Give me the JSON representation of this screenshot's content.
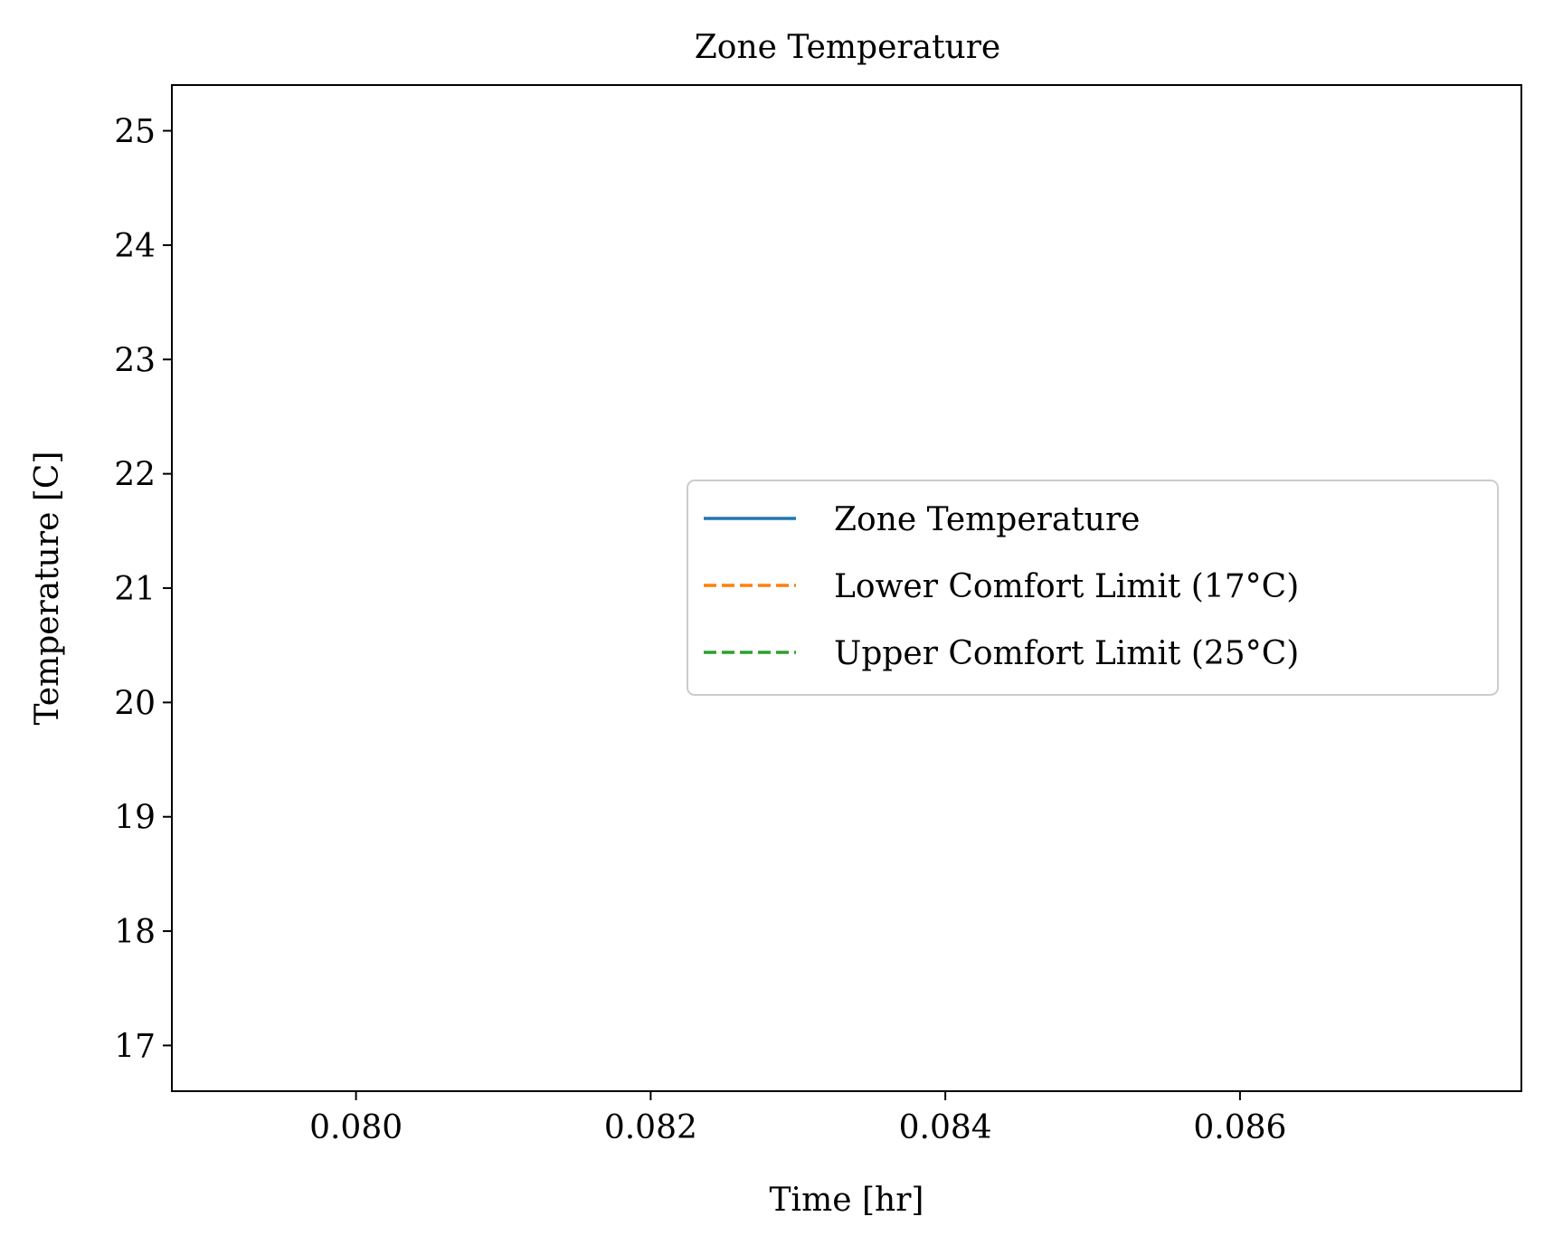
{
  "chart_data": {
    "type": "line",
    "title": "Zone Temperature",
    "xlabel": "Time [hr]",
    "ylabel": "Temperature [C]",
    "xlim": [
      0.07875,
      0.08791
    ],
    "ylim": [
      16.6,
      25.4
    ],
    "xticks": [
      0.08,
      0.082,
      0.084,
      0.086
    ],
    "xtick_labels": [
      "0.080",
      "0.082",
      "0.084",
      "0.086"
    ],
    "yticks": [
      17,
      18,
      19,
      20,
      21,
      22,
      23,
      24,
      25
    ],
    "ytick_labels": [
      "17",
      "18",
      "19",
      "20",
      "21",
      "22",
      "23",
      "24",
      "25"
    ],
    "grid": false,
    "legend_position": "center-right",
    "series": [
      {
        "name": "Zone Temperature",
        "color": "#1f77b4",
        "style": "solid",
        "x": [],
        "y": []
      },
      {
        "name": "Lower Comfort Limit (17°C)",
        "color": "#ff7f0e",
        "style": "dashed",
        "x": [],
        "y": []
      },
      {
        "name": "Upper Comfort Limit (25°C)",
        "color": "#2ca02c",
        "style": "dashed",
        "x": [],
        "y": []
      }
    ]
  }
}
